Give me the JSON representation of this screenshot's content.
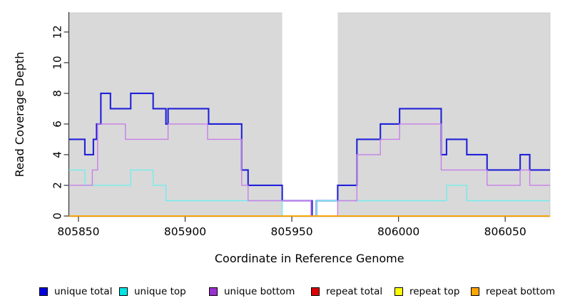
{
  "axes": {
    "ylabel": "Read Coverage Depth",
    "xlabel": "Coordinate in Reference Genome"
  },
  "chart_data": {
    "type": "line",
    "subtype": "step",
    "title": "",
    "xlabel": "Coordinate in Reference Genome",
    "ylabel": "Read Coverage Depth",
    "xlim": [
      805845.5,
      806071
    ],
    "ylim": [
      0,
      13.25
    ],
    "x_ticks": [
      805850,
      805900,
      805950,
      806000,
      806050
    ],
    "y_ticks": [
      0,
      2,
      4,
      6,
      8,
      10,
      12
    ],
    "grid": false,
    "panel_color": "#d9d9d9",
    "no_data_band": [
      805945.5,
      805971.5
    ],
    "legend_position": "bottom",
    "series": [
      {
        "name": "unique total",
        "color": "#2121d8",
        "legend_color": "#0000e0",
        "width": 2.1,
        "steps": [
          [
            805845.5,
            5
          ],
          [
            805853,
            4
          ],
          [
            805857,
            5
          ],
          [
            805858.5,
            6
          ],
          [
            805860.5,
            8
          ],
          [
            805865,
            7
          ],
          [
            805874.5,
            8
          ],
          [
            805885,
            7
          ],
          [
            805891,
            6
          ],
          [
            805892,
            7
          ],
          [
            805911,
            6
          ],
          [
            805926.5,
            3
          ],
          [
            805929.5,
            2
          ],
          [
            805945.5,
            1
          ],
          [
            805959.5,
            0
          ],
          [
            805961.5,
            1
          ],
          [
            805971.5,
            2
          ],
          [
            805980.5,
            5
          ],
          [
            805991.5,
            6
          ],
          [
            806000.5,
            7
          ],
          [
            806020,
            4
          ],
          [
            806022.5,
            5
          ],
          [
            806032,
            4
          ],
          [
            806041.5,
            3
          ],
          [
            806057,
            4
          ],
          [
            806061.5,
            3
          ]
        ]
      },
      {
        "name": "unique top",
        "color": "#74ecec",
        "legend_color": "#00e5e5",
        "width": 1.4,
        "steps": [
          [
            805845.5,
            3
          ],
          [
            805853,
            2
          ],
          [
            805874.5,
            3
          ],
          [
            805885,
            2
          ],
          [
            805891,
            1
          ],
          [
            805945.5,
            0
          ],
          [
            805961.5,
            1
          ],
          [
            806022.5,
            2
          ],
          [
            806032,
            1
          ]
        ]
      },
      {
        "name": "unique bottom",
        "color": "#c77fe8",
        "legend_color": "#9a30d0",
        "width": 1.4,
        "steps": [
          [
            805845.5,
            2
          ],
          [
            805856.5,
            3
          ],
          [
            805859,
            6
          ],
          [
            805872,
            5
          ],
          [
            805892,
            6
          ],
          [
            805910.5,
            5
          ],
          [
            805926.5,
            2
          ],
          [
            805929.5,
            1
          ],
          [
            805959,
            0
          ],
          [
            805971.5,
            1
          ],
          [
            805980.5,
            4
          ],
          [
            805991.5,
            5
          ],
          [
            806000.5,
            6
          ],
          [
            806020,
            3
          ],
          [
            806041.5,
            2
          ],
          [
            806057,
            3
          ],
          [
            806061.5,
            2
          ]
        ]
      },
      {
        "name": "repeat total",
        "color": "#dd0000",
        "legend_color": "#dd0000",
        "width": 1.4,
        "steps": [
          [
            805845.5,
            0
          ]
        ]
      },
      {
        "name": "repeat top",
        "color": "#ffff00",
        "legend_color": "#ffff00",
        "width": 1.4,
        "steps": [
          [
            805845.5,
            0
          ]
        ]
      },
      {
        "name": "repeat bottom",
        "color": "#ffa500",
        "legend_color": "#ffa500",
        "width": 1.6,
        "steps": [
          [
            805845.5,
            0
          ]
        ]
      }
    ]
  },
  "legend": {
    "items": [
      {
        "label": "unique total",
        "color": "#0000e0"
      },
      {
        "label": "unique top",
        "color": "#00e5e5"
      },
      {
        "label": "unique bottom",
        "color": "#9a30d0"
      },
      {
        "label": "repeat total",
        "color": "#dd0000"
      },
      {
        "label": "repeat top",
        "color": "#ffff00"
      },
      {
        "label": "repeat bottom",
        "color": "#ffa500"
      }
    ]
  }
}
